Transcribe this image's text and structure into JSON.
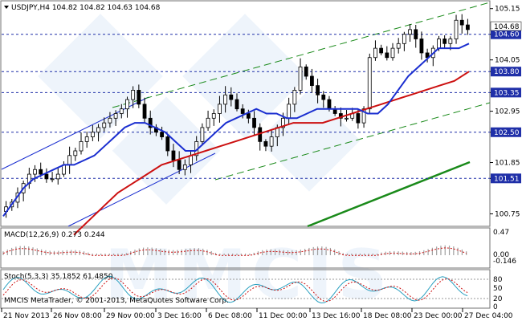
{
  "chart_data": [
    {
      "type": "candlestick",
      "symbol": "USDJPY,H4",
      "ohlc_header": "104.82 104.82 104.63 104.68",
      "title": "USDJPY,H4  104.82 104.82 104.63 104.68",
      "ylim": [
        100.5,
        105.3
      ],
      "y_ticks": [
        "105.15",
        "104.60",
        "104.05",
        "103.80",
        "103.35",
        "102.95",
        "102.50",
        "101.85",
        "101.51",
        "100.75"
      ],
      "horizontal_levels": [
        {
          "value": 104.6,
          "label": "104.60",
          "style": "dashed",
          "color": "#1f2fa8"
        },
        {
          "value": 103.8,
          "label": "103.80",
          "style": "dashed",
          "color": "#1f2fa8"
        },
        {
          "value": 103.35,
          "label": "103.35",
          "style": "dashed",
          "color": "#1f2fa8"
        },
        {
          "value": 102.5,
          "label": "102.50",
          "style": "dashed",
          "color": "#1f2fa8"
        },
        {
          "value": 101.51,
          "label": "101.51",
          "style": "dashed",
          "color": "#1f2fa8"
        }
      ],
      "current_price_label": "104.68",
      "x_ticks": [
        "21 Nov 2013",
        "26 Nov 08:00",
        "29 Nov 00:00",
        "3 Dec 16:00",
        "6 Dec 08:00",
        "11 Dec 00:00",
        "13 Dec 16:00",
        "18 Dec 08:00",
        "23 Dec 00:00",
        "27 Dec 04:00"
      ],
      "series": [
        {
          "values": [
            100.9,
            101.0,
            101.2,
            101.4,
            101.6,
            101.7,
            101.6,
            101.5,
            101.5,
            101.6,
            101.8,
            102.0,
            102.1,
            102.3,
            102.4,
            102.5,
            102.6,
            102.7,
            102.8,
            102.9,
            103.0,
            103.2,
            103.4,
            103.1,
            102.8,
            102.6,
            102.5,
            102.4,
            102.1,
            101.9,
            101.7,
            101.8,
            102.0,
            102.3,
            102.6,
            102.8,
            102.9,
            103.1,
            103.3,
            103.2,
            103.0,
            102.9,
            102.8,
            102.6,
            102.3,
            102.2,
            102.4,
            102.6,
            102.8,
            103.1,
            103.4,
            103.9,
            103.7,
            103.5,
            103.3,
            103.2,
            103.0,
            102.9,
            102.8,
            102.8,
            102.9,
            102.7,
            103.0,
            104.1,
            104.3,
            104.2,
            104.1,
            104.3,
            104.4,
            104.6,
            104.7,
            104.5,
            104.2,
            104.1,
            104.3,
            104.5,
            104.4,
            104.5,
            104.9,
            104.8,
            104.7
          ]
        },
        {
          "name": "MA fast",
          "color": "#1a2ed0",
          "values": [
            100.7,
            101.0,
            101.3,
            101.5,
            101.6,
            101.7,
            101.8,
            101.8,
            101.9,
            102.0,
            102.2,
            102.4,
            102.6,
            102.7,
            102.7,
            102.6,
            102.5,
            102.3,
            102.1,
            102.1,
            102.3,
            102.5,
            102.7,
            102.8,
            102.9,
            103.0,
            102.9,
            102.9,
            102.8,
            102.8,
            102.9,
            103.0,
            103.0,
            103.0,
            103.0,
            103.0,
            102.9,
            102.9,
            103.1,
            103.4,
            103.7,
            103.9,
            104.1,
            104.3,
            104.3,
            104.3,
            104.4
          ]
        },
        {
          "name": "MA slow",
          "color": "#cc1010",
          "values": [
            100.3,
            100.6,
            100.9,
            101.2,
            101.4,
            101.6,
            101.8,
            101.9,
            102.0,
            102.1,
            102.2,
            102.3,
            102.4,
            102.5,
            102.6,
            102.7,
            102.7,
            102.7,
            102.8,
            102.9,
            103.0,
            103.1,
            103.2,
            103.3,
            103.4,
            103.5,
            103.6,
            103.8
          ]
        },
        {
          "name": "MA trend",
          "color": "#1a8a1a",
          "values": [
            100.6,
            100.9,
            101.2,
            101.5,
            101.7,
            101.95
          ]
        }
      ],
      "watermark": "MMCIS"
    },
    {
      "type": "histogram",
      "title": "MACD(12,26,9) 0.273 0.244",
      "y_ticks": [
        "0.47",
        "0.00",
        "-0.146"
      ],
      "ylim": [
        -0.146,
        0.47
      ]
    },
    {
      "type": "line",
      "title": "Stoch(5,3,3) 35.1852 61.4850",
      "y_ticks": [
        "80",
        "50",
        "20",
        "0"
      ],
      "ylim": [
        0,
        100
      ]
    }
  ],
  "footer": {
    "copyright": "MMCIS MetaTrader, © 2001-2013, MetaQuotes Software Corp."
  },
  "colors": {
    "grid": "#9a9a9a",
    "level": "#1f2fa8",
    "channel_blue": "#1a2ed0",
    "channel_green": "#1a8a1a",
    "watermark": "#cfe0f5"
  }
}
